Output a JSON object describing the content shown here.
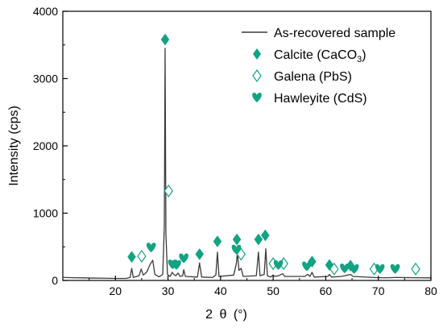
{
  "chart_data": {
    "type": "line",
    "xlabel_prefix": "2",
    "xlabel_theta": "θ",
    "xlabel_unit": "(°)",
    "ylabel": "Intensity (cps)",
    "xlim": [
      10,
      80
    ],
    "ylim": [
      0,
      4000
    ],
    "xticks": [
      20,
      30,
      40,
      50,
      60,
      70,
      80
    ],
    "yticks": [
      0,
      1000,
      2000,
      3000,
      4000
    ],
    "grid": false,
    "legend_position": "top-right",
    "colors": {
      "line": "#3a3a3a",
      "marker": "#12a383"
    },
    "legend": {
      "line": "As-recovered sample",
      "calcite_main": "Calcite (CaCO",
      "calcite_sub": "3",
      "calcite_end": ")",
      "galena": "Galena (PbS)",
      "hawleyite": "Hawleyite (CdS)"
    },
    "pattern": [
      [
        10,
        45
      ],
      [
        12,
        40
      ],
      [
        14,
        38
      ],
      [
        16,
        35
      ],
      [
        18,
        33
      ],
      [
        20,
        30
      ],
      [
        22,
        30
      ],
      [
        22.8,
        45
      ],
      [
        23.1,
        180
      ],
      [
        23.4,
        45
      ],
      [
        24.5,
        70
      ],
      [
        24.9,
        170
      ],
      [
        25.3,
        80
      ],
      [
        26.0,
        130
      ],
      [
        26.6,
        240
      ],
      [
        27.1,
        300
      ],
      [
        27.5,
        90
      ],
      [
        28.3,
        55
      ],
      [
        29.0,
        90
      ],
      [
        29.3,
        800
      ],
      [
        29.45,
        3450
      ],
      [
        29.6,
        700
      ],
      [
        29.9,
        90
      ],
      [
        30.4,
        60
      ],
      [
        30.8,
        120
      ],
      [
        31.1,
        90
      ],
      [
        31.5,
        70
      ],
      [
        31.9,
        110
      ],
      [
        32.3,
        60
      ],
      [
        32.8,
        70
      ],
      [
        33.0,
        160
      ],
      [
        33.3,
        60
      ],
      [
        35.6,
        50
      ],
      [
        36.0,
        260
      ],
      [
        36.4,
        50
      ],
      [
        38.5,
        45
      ],
      [
        39.1,
        80
      ],
      [
        39.4,
        420
      ],
      [
        39.7,
        60
      ],
      [
        42.5,
        80
      ],
      [
        43.0,
        250
      ],
      [
        43.2,
        420
      ],
      [
        43.5,
        150
      ],
      [
        43.9,
        180
      ],
      [
        44.3,
        60
      ],
      [
        46.8,
        70
      ],
      [
        47.2,
        420
      ],
      [
        47.5,
        70
      ],
      [
        48.3,
        90
      ],
      [
        48.6,
        470
      ],
      [
        48.9,
        70
      ],
      [
        49.5,
        50
      ],
      [
        50.0,
        80
      ],
      [
        50.3,
        60
      ],
      [
        51.0,
        70
      ],
      [
        51.8,
        100
      ],
      [
        52.2,
        60
      ],
      [
        56.0,
        60
      ],
      [
        56.6,
        90
      ],
      [
        57.0,
        60
      ],
      [
        57.4,
        120
      ],
      [
        57.8,
        50
      ],
      [
        60.4,
        60
      ],
      [
        60.7,
        90
      ],
      [
        61.1,
        50
      ],
      [
        63.0,
        60
      ],
      [
        64.7,
        90
      ],
      [
        65.2,
        60
      ],
      [
        70.0,
        40
      ],
      [
        72.0,
        40
      ],
      [
        73.4,
        45
      ],
      [
        77.0,
        40
      ],
      [
        80,
        38
      ]
    ],
    "series": [
      {
        "name": "Calcite (CaCO3)",
        "marker": "diamond",
        "points": [
          [
            23.1,
            350
          ],
          [
            29.45,
            3580
          ],
          [
            36.0,
            390
          ],
          [
            39.4,
            580
          ],
          [
            43.1,
            610
          ],
          [
            47.2,
            610
          ],
          [
            48.5,
            670
          ],
          [
            57.4,
            280
          ],
          [
            60.7,
            230
          ],
          [
            64.7,
            220
          ]
        ]
      },
      {
        "name": "Galena (PbS)",
        "marker": "open-diamond",
        "points": [
          [
            25.0,
            360
          ],
          [
            30.1,
            1330
          ],
          [
            43.9,
            390
          ],
          [
            50.0,
            250
          ],
          [
            52.0,
            250
          ],
          [
            61.6,
            170
          ],
          [
            69.2,
            170
          ],
          [
            77.1,
            170
          ]
        ]
      },
      {
        "name": "Hawleyite (CdS)",
        "marker": "heart",
        "points": [
          [
            26.8,
            490
          ],
          [
            30.9,
            240
          ],
          [
            31.6,
            230
          ],
          [
            33.0,
            330
          ],
          [
            43.0,
            460
          ],
          [
            51.0,
            230
          ],
          [
            56.4,
            210
          ],
          [
            63.6,
            180
          ],
          [
            65.4,
            170
          ],
          [
            70.3,
            170
          ],
          [
            73.2,
            170
          ]
        ]
      }
    ]
  }
}
